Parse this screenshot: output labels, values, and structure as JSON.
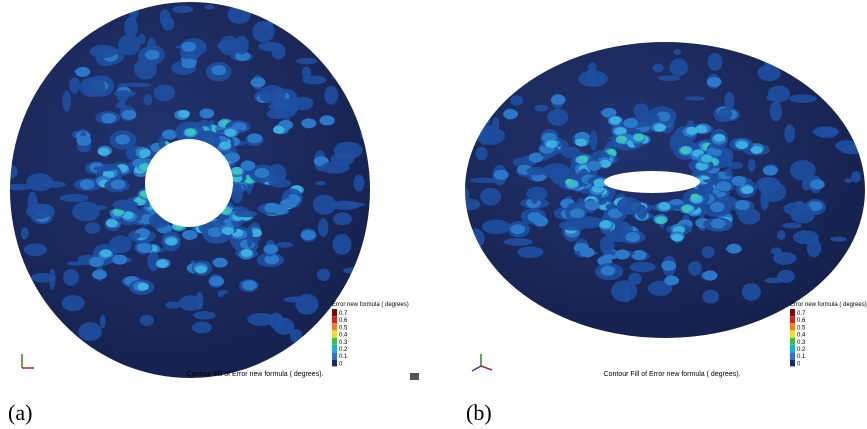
{
  "panels": [
    {
      "label": "(a)",
      "legend_title": "Error new formula ( degrees)",
      "legend_ticks": [
        "0.7",
        "0.6",
        "0.5",
        "0.4",
        "0.3",
        "0.2",
        "0.1",
        "0"
      ],
      "caption": "Contour Fill of Error new formula ( degrees)."
    },
    {
      "label": "(b)",
      "legend_title": "Error new formula ( degrees)",
      "legend_ticks": [
        "0.7",
        "0.6",
        "0.5",
        "0.4",
        "0.3",
        "0.2",
        "0.1",
        "0"
      ],
      "caption": "Contour Fill of Error new formula ( degrees)."
    }
  ]
}
